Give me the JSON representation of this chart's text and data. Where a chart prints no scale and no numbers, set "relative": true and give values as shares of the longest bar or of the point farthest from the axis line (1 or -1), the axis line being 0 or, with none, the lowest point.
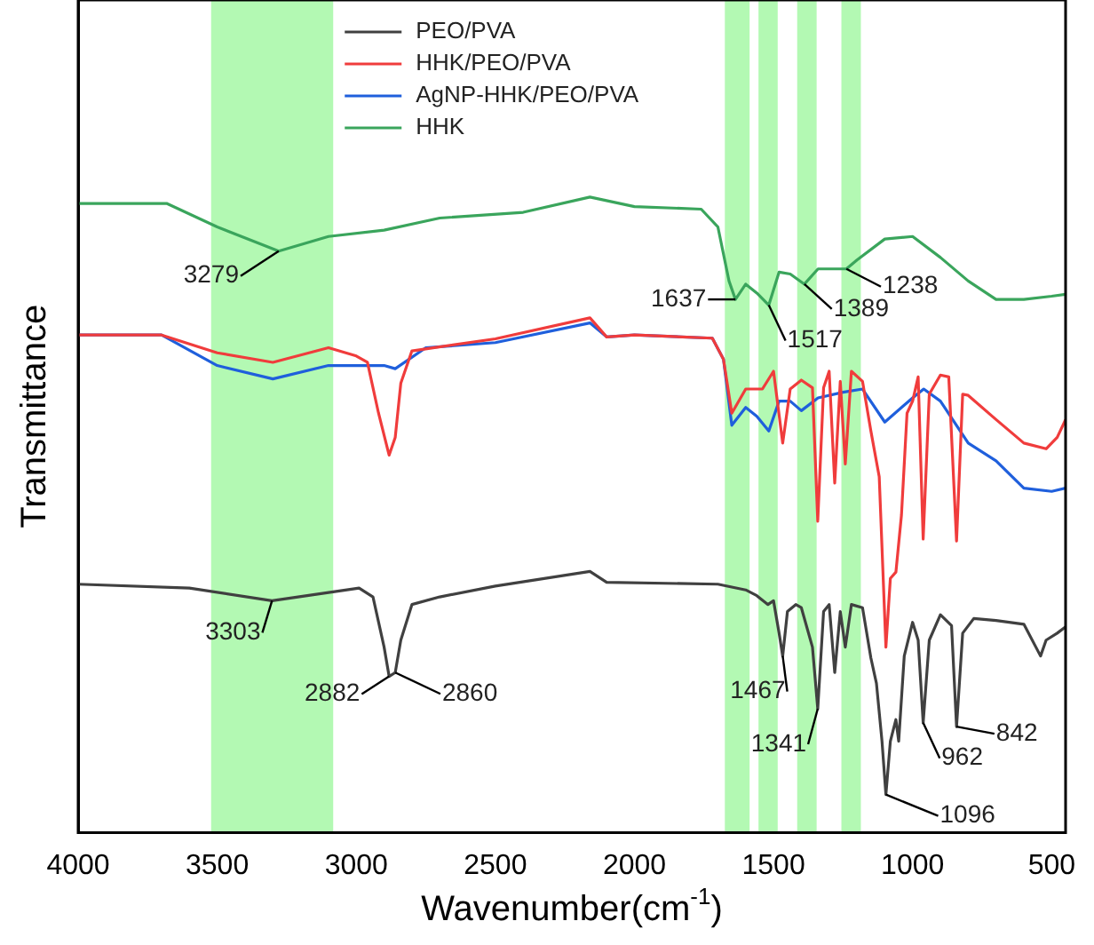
{
  "chart_data": {
    "type": "line",
    "relative": true,
    "xlabel": "Wavenumber(cm$^{-1}$)",
    "ylabel": "Transmittance",
    "xlim": [
      4000,
      450
    ],
    "xticks": [
      4000,
      3500,
      3000,
      2500,
      2000,
      1500,
      1000,
      500
    ],
    "grid": false,
    "legend": "top",
    "marker": "none",
    "line_style": "solid",
    "bands": [
      {
        "axis": "x",
        "from": 3522,
        "to": 3083,
        "color": "#b3f9b3"
      },
      {
        "axis": "x",
        "from": 1675,
        "to": 1586,
        "color": "#b3f9b3"
      },
      {
        "axis": "x",
        "from": 1554,
        "to": 1485,
        "color": "#b3f9b3"
      },
      {
        "axis": "x",
        "from": 1415,
        "to": 1345,
        "color": "#b3f9b3"
      },
      {
        "axis": "x",
        "from": 1256,
        "to": 1186,
        "color": "#b3f9b3"
      }
    ],
    "series": [
      {
        "name": "PEO/PVA",
        "color": "#404040",
        "x": [
          4000,
          3600,
          3303,
          2990,
          2940,
          2900,
          2882,
          2860,
          2840,
          2800,
          2700,
          2500,
          2160,
          2100,
          1700,
          1600,
          1560,
          1520,
          1500,
          1480,
          1467,
          1450,
          1420,
          1400,
          1360,
          1341,
          1320,
          1300,
          1280,
          1260,
          1242,
          1220,
          1180,
          1150,
          1130,
          1110,
          1096,
          1080,
          1060,
          1050,
          1030,
          1000,
          980,
          962,
          940,
          900,
          860,
          842,
          820,
          780,
          700,
          600,
          540,
          520,
          480,
          450
        ],
        "values": [
          0.391,
          0.385,
          0.365,
          0.385,
          0.371,
          0.292,
          0.246,
          0.252,
          0.303,
          0.359,
          0.371,
          0.388,
          0.411,
          0.394,
          0.391,
          0.382,
          0.373,
          0.359,
          0.365,
          0.314,
          0.278,
          0.348,
          0.359,
          0.354,
          0.292,
          0.195,
          0.348,
          0.359,
          0.252,
          0.348,
          0.292,
          0.359,
          0.354,
          0.275,
          0.235,
          0.144,
          0.06,
          0.144,
          0.178,
          0.144,
          0.278,
          0.331,
          0.303,
          0.173,
          0.303,
          0.343,
          0.326,
          0.167,
          0.314,
          0.337,
          0.334,
          0.328,
          0.278,
          0.303,
          0.314,
          0.324
        ]
      },
      {
        "name": "HHK/PEO/PVA",
        "color": "#f03c3c",
        "x": [
          4000,
          3700,
          3500,
          3300,
          3100,
          3000,
          2960,
          2920,
          2882,
          2860,
          2840,
          2800,
          2500,
          2160,
          2100,
          2000,
          1720,
          1680,
          1650,
          1600,
          1540,
          1500,
          1467,
          1440,
          1400,
          1360,
          1341,
          1320,
          1300,
          1280,
          1260,
          1242,
          1220,
          1180,
          1150,
          1120,
          1096,
          1080,
          1060,
          1040,
          1020,
          1000,
          980,
          962,
          940,
          900,
          870,
          842,
          820,
          800,
          700,
          600,
          520,
          480,
          450
        ],
        "values": [
          0.783,
          0.783,
          0.755,
          0.74,
          0.763,
          0.75,
          0.74,
          0.66,
          0.594,
          0.622,
          0.707,
          0.758,
          0.777,
          0.81,
          0.78,
          0.783,
          0.778,
          0.745,
          0.66,
          0.698,
          0.698,
          0.726,
          0.613,
          0.698,
          0.712,
          0.7,
          0.49,
          0.7,
          0.726,
          0.55,
          0.71,
          0.58,
          0.726,
          0.71,
          0.632,
          0.56,
          0.292,
          0.4,
          0.41,
          0.5,
          0.66,
          0.679,
          0.717,
          0.462,
          0.69,
          0.72,
          0.717,
          0.459,
          0.69,
          0.688,
          0.65,
          0.613,
          0.604,
          0.622,
          0.65
        ]
      },
      {
        "name": "AgNP-HHK/PEO/PVA",
        "color": "#1f5fdc",
        "x": [
          4000,
          3700,
          3500,
          3300,
          3100,
          2900,
          2860,
          2750,
          2500,
          2160,
          2100,
          2000,
          1720,
          1680,
          1650,
          1600,
          1560,
          1517,
          1480,
          1440,
          1400,
          1340,
          1250,
          1180,
          1100,
          1000,
          960,
          900,
          800,
          700,
          600,
          500,
          450
        ],
        "values": [
          0.783,
          0.783,
          0.735,
          0.714,
          0.735,
          0.735,
          0.73,
          0.763,
          0.771,
          0.802,
          0.78,
          0.783,
          0.778,
          0.745,
          0.641,
          0.669,
          0.655,
          0.632,
          0.679,
          0.679,
          0.664,
          0.684,
          0.693,
          0.698,
          0.646,
          0.684,
          0.698,
          0.679,
          0.613,
          0.585,
          0.542,
          0.537,
          0.542
        ]
      },
      {
        "name": "HHK",
        "color": "#3aa55c",
        "x": [
          4000,
          3682,
          3500,
          3279,
          3100,
          2900,
          2700,
          2400,
          2160,
          2000,
          1760,
          1700,
          1660,
          1637,
          1600,
          1560,
          1517,
          1480,
          1440,
          1389,
          1340,
          1238,
          1200,
          1100,
          1000,
          900,
          800,
          700,
          600,
          500,
          450
        ],
        "values": [
          0.99,
          0.99,
          0.953,
          0.915,
          0.938,
          0.948,
          0.967,
          0.976,
          1,
          0.985,
          0.981,
          0.953,
          0.868,
          0.839,
          0.863,
          0.849,
          0.83,
          0.882,
          0.879,
          0.863,
          0.887,
          0.887,
          0.901,
          0.934,
          0.938,
          0.905,
          0.868,
          0.839,
          0.839,
          0.844,
          0.847
        ]
      }
    ],
    "annotations": [
      {
        "text": "3279",
        "x": 3279,
        "y": 0.915
      },
      {
        "text": "1637",
        "x": 1637,
        "y": 0.839
      },
      {
        "text": "1517",
        "x": 1517,
        "y": 0.83
      },
      {
        "text": "1389",
        "x": 1389,
        "y": 0.863
      },
      {
        "text": "1238",
        "x": 1238,
        "y": 0.887
      },
      {
        "text": "3303",
        "x": 3303,
        "y": 0.365
      },
      {
        "text": "2882",
        "x": 2882,
        "y": 0.246
      },
      {
        "text": "2860",
        "x": 2860,
        "y": 0.252
      },
      {
        "text": "1467",
        "x": 1467,
        "y": 0.278
      },
      {
        "text": "1341",
        "x": 1341,
        "y": 0.195
      },
      {
        "text": "1096",
        "x": 1096,
        "y": 0.06
      },
      {
        "text": "962",
        "x": 962,
        "y": 0.173
      },
      {
        "text": "842",
        "x": 842,
        "y": 0.167
      }
    ]
  }
}
